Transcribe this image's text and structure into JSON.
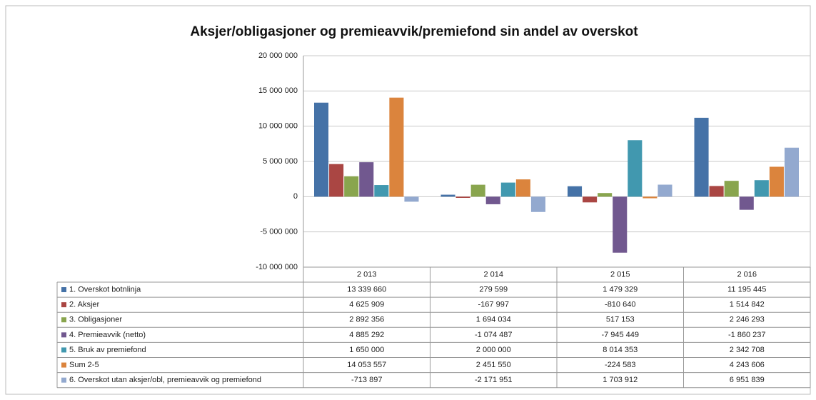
{
  "chart_data": {
    "type": "bar",
    "title": "Aksjer/obligasjoner og premieavvik/premiefond sin andel av overskot",
    "categories": [
      "2 013",
      "2 014",
      "2 015",
      "2 016"
    ],
    "series": [
      {
        "name": "1. Overskot botnlinja",
        "color": "#4572a7",
        "values": [
          13339660,
          279599,
          1479329,
          11195445
        ],
        "value_labels": [
          "13 339 660",
          "279 599",
          "1 479 329",
          "11 195 445"
        ]
      },
      {
        "name": "2. Aksjer",
        "color": "#aa4643",
        "values": [
          4625909,
          -167997,
          -810640,
          1514842
        ],
        "value_labels": [
          "4 625 909",
          "-167 997",
          "-810 640",
          "1 514 842"
        ]
      },
      {
        "name": "3. Obligasjoner",
        "color": "#89a54e",
        "values": [
          2892356,
          1694034,
          517153,
          2246293
        ],
        "value_labels": [
          "2 892 356",
          "1 694 034",
          "517 153",
          "2 246 293"
        ]
      },
      {
        "name": "4. Premieavvik (netto)",
        "color": "#71588f",
        "values": [
          4885292,
          -1074487,
          -7945449,
          -1860237
        ],
        "value_labels": [
          "4 885 292",
          "-1 074 487",
          "-7 945 449",
          "-1 860 237"
        ]
      },
      {
        "name": "5. Bruk av premiefond",
        "color": "#4198af",
        "values": [
          1650000,
          2000000,
          8014353,
          2342708
        ],
        "value_labels": [
          "1 650 000",
          "2 000 000",
          "8 014 353",
          "2 342 708"
        ]
      },
      {
        "name": "Sum 2-5",
        "color": "#db843d",
        "values": [
          14053557,
          2451550,
          -224583,
          4243606
        ],
        "value_labels": [
          "14 053 557",
          "2 451 550",
          "-224 583",
          "4 243 606"
        ]
      },
      {
        "name": "6. Overskot utan aksjer/obl, premieavvik og premiefond",
        "color": "#93a9cf",
        "values": [
          -713897,
          -2171951,
          1703912,
          6951839
        ],
        "value_labels": [
          "-713 897",
          "-2 171 951",
          "1 703 912",
          "6 951 839"
        ]
      }
    ],
    "ylim": [
      -10000000,
      20000000
    ],
    "yticks": [
      {
        "value": -10000000,
        "label": "-10 000 000"
      },
      {
        "value": -5000000,
        "label": "-5 000 000"
      },
      0,
      {
        "value": 5000000,
        "label": "5 000 000"
      },
      {
        "value": 10000000,
        "label": "10 000 000"
      },
      {
        "value": 15000000,
        "label": "15 000 000"
      },
      {
        "value": 20000000,
        "label": "20 000 000"
      }
    ],
    "grid": true
  }
}
